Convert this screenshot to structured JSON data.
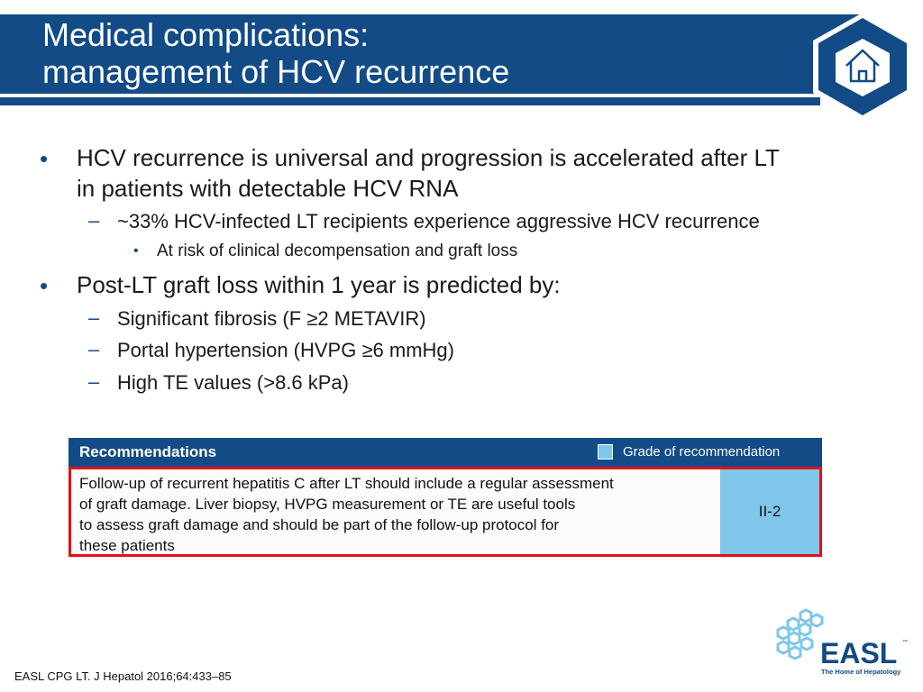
{
  "title": {
    "line1": "Medical complications:",
    "line2": "management of HCV recurrence"
  },
  "bullets": {
    "b1": "HCV recurrence is universal and progression is accelerated after LT",
    "b1_cont": "in patients with detectable HCV RNA",
    "b1_sub1": "~33% HCV-infected LT recipients experience aggressive HCV recurrence",
    "b1_sub1_sub": "At risk of clinical decompensation and graft loss",
    "b2": "Post-LT graft loss within 1 year is predicted by:",
    "b2_subs": [
      "Significant fibrosis (F ≥2 METAVIR)",
      "Portal hypertension (HVPG ≥6 mmHg)",
      "High TE values (>8.6 kPa)"
    ],
    "bullet_glyph": "•",
    "dash_glyph": "–"
  },
  "recommendations": {
    "heading": "Recommendations",
    "grade_legend": "Grade of recommendation",
    "text_lines": [
      "Follow-up of recurrent hepatitis C after LT should include a regular assessment",
      "of graft damage. Liver biopsy, HVPG measurement or TE are useful tools",
      "to assess graft damage and should be part of the follow-up protocol for",
      "these patients"
    ],
    "grade": "II-2"
  },
  "citation": "EASL CPG LT. J Hepatol 2016;64:433–85",
  "logo": {
    "text": "EASL",
    "tagline": "The Home of Hepatology",
    "tm": "™"
  },
  "icons": {
    "home": "home-icon"
  },
  "colors": {
    "brand_blue": "#124b86",
    "grade_blue": "#7fc7ea",
    "highlight_red": "#e0121a"
  }
}
